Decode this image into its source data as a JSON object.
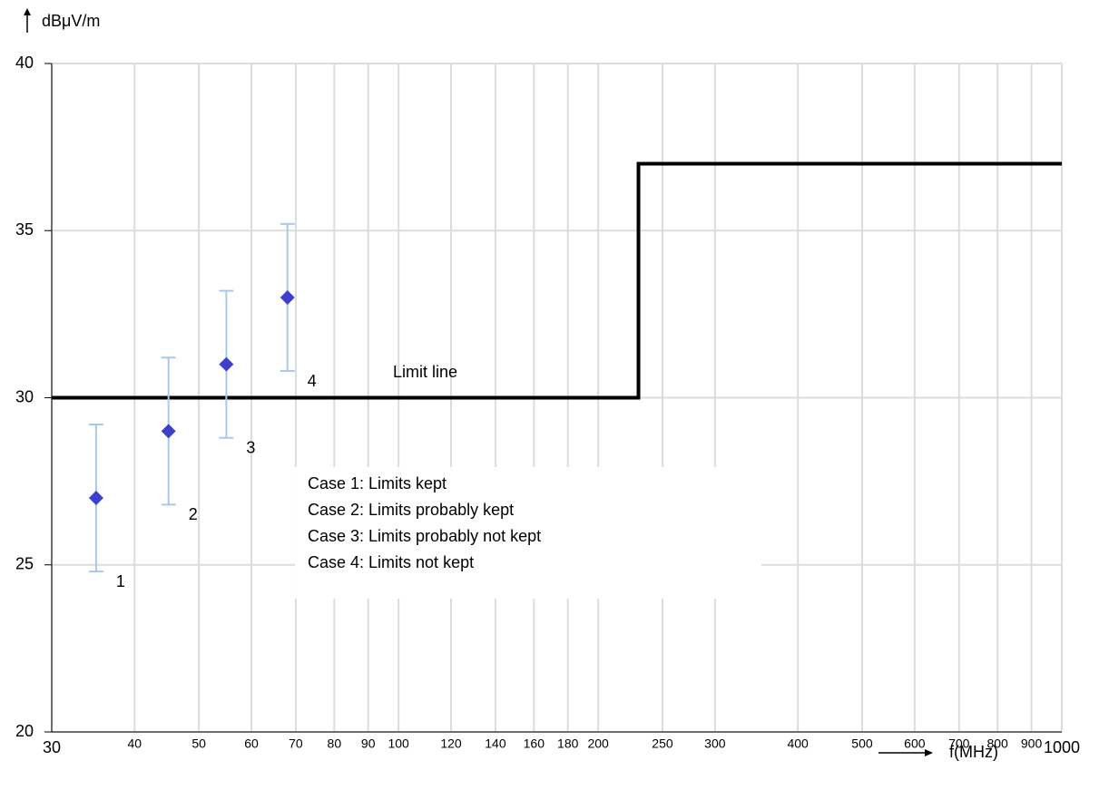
{
  "chart_data": {
    "type": "scatter",
    "y_label": "dBμV/m",
    "x_label": "f(MHz)",
    "xlim": [
      30,
      1000
    ],
    "xticks": [
      30,
      40,
      50,
      60,
      70,
      80,
      90,
      100,
      120,
      140,
      160,
      180,
      200,
      250,
      300,
      400,
      500,
      600,
      700,
      800,
      900,
      1000
    ],
    "xscale": "log",
    "ylim": [
      20,
      40
    ],
    "yticks": [
      20,
      25,
      30,
      35,
      40
    ],
    "grid": true,
    "series": [
      {
        "color": "#3f3fcf",
        "error_color": "#a9c8ee",
        "x": [
          35,
          45,
          55,
          68
        ],
        "values": [
          27,
          29,
          31,
          33
        ],
        "errors": [
          2.2,
          2.2,
          2.2,
          2.2
        ],
        "point_labels": [
          "1",
          "2",
          "3",
          "4"
        ]
      }
    ],
    "limit_line": {
      "label": "Limit line",
      "color": "#000000",
      "x": [
        30,
        230,
        230,
        1000
      ],
      "values": [
        30,
        30,
        37,
        37
      ]
    },
    "legend_text": [
      "Case 1: Limits kept",
      "Case 2: Limits probably kept",
      "Case 3: Limits probably not kept",
      "Case 4: Limits not kept"
    ]
  }
}
